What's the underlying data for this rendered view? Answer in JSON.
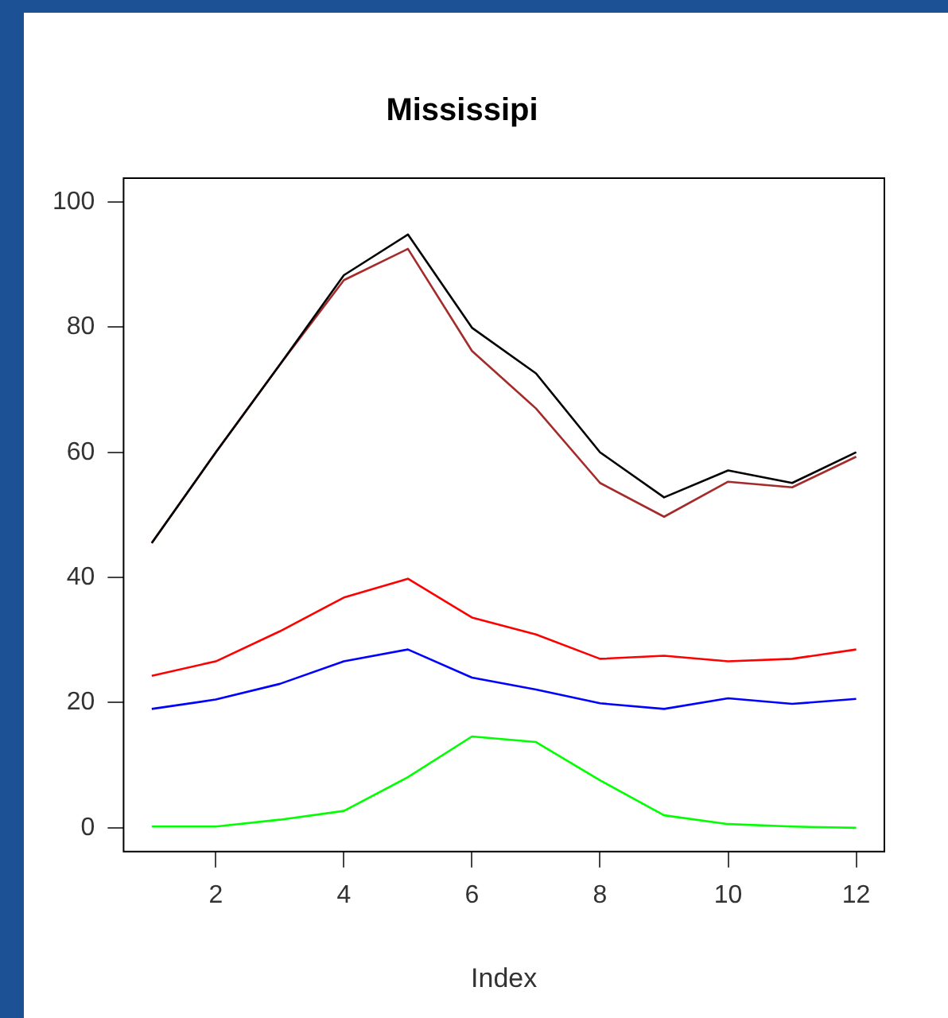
{
  "chart_data": {
    "type": "line",
    "title": "Mississipi",
    "xlabel": "Index",
    "x": [
      1,
      2,
      3,
      4,
      5,
      6,
      7,
      8,
      9,
      10,
      11,
      12
    ],
    "series": [
      {
        "color": "#000000",
        "values": [
          45.5,
          60,
          74,
          88.3,
          94.8,
          79.9,
          72.6,
          60,
          52.8,
          57.1,
          55.1,
          60
        ]
      },
      {
        "color": "#a52a2a",
        "values": [
          45.5,
          60,
          74,
          87.5,
          92.5,
          76.2,
          67,
          55.1,
          49.7,
          55.3,
          54.4,
          59.3
        ]
      },
      {
        "color": "#ff0000",
        "values": [
          24.3,
          26.6,
          31.4,
          36.8,
          39.8,
          33.6,
          30.9,
          27,
          27.5,
          26.6,
          27,
          28.5
        ]
      },
      {
        "color": "#0000ff",
        "values": [
          19,
          20.5,
          23,
          26.6,
          28.5,
          24,
          22.1,
          19.9,
          19,
          20.7,
          19.8,
          20.6
        ]
      },
      {
        "color": "#00ff00",
        "values": [
          0.2,
          0.2,
          1.3,
          2.7,
          8.1,
          14.6,
          13.7,
          7.6,
          2,
          0.6,
          0.2,
          0
        ]
      }
    ],
    "xlim": [
      0.56,
      12.44
    ],
    "xticks": [
      2,
      4,
      6,
      8,
      10,
      12
    ],
    "ylim": [
      -3.8,
      103.8
    ],
    "yticks": [
      0,
      20,
      40,
      60,
      80,
      100
    ],
    "grid": false,
    "legend": false,
    "marker": "none",
    "line_style": "solid"
  }
}
